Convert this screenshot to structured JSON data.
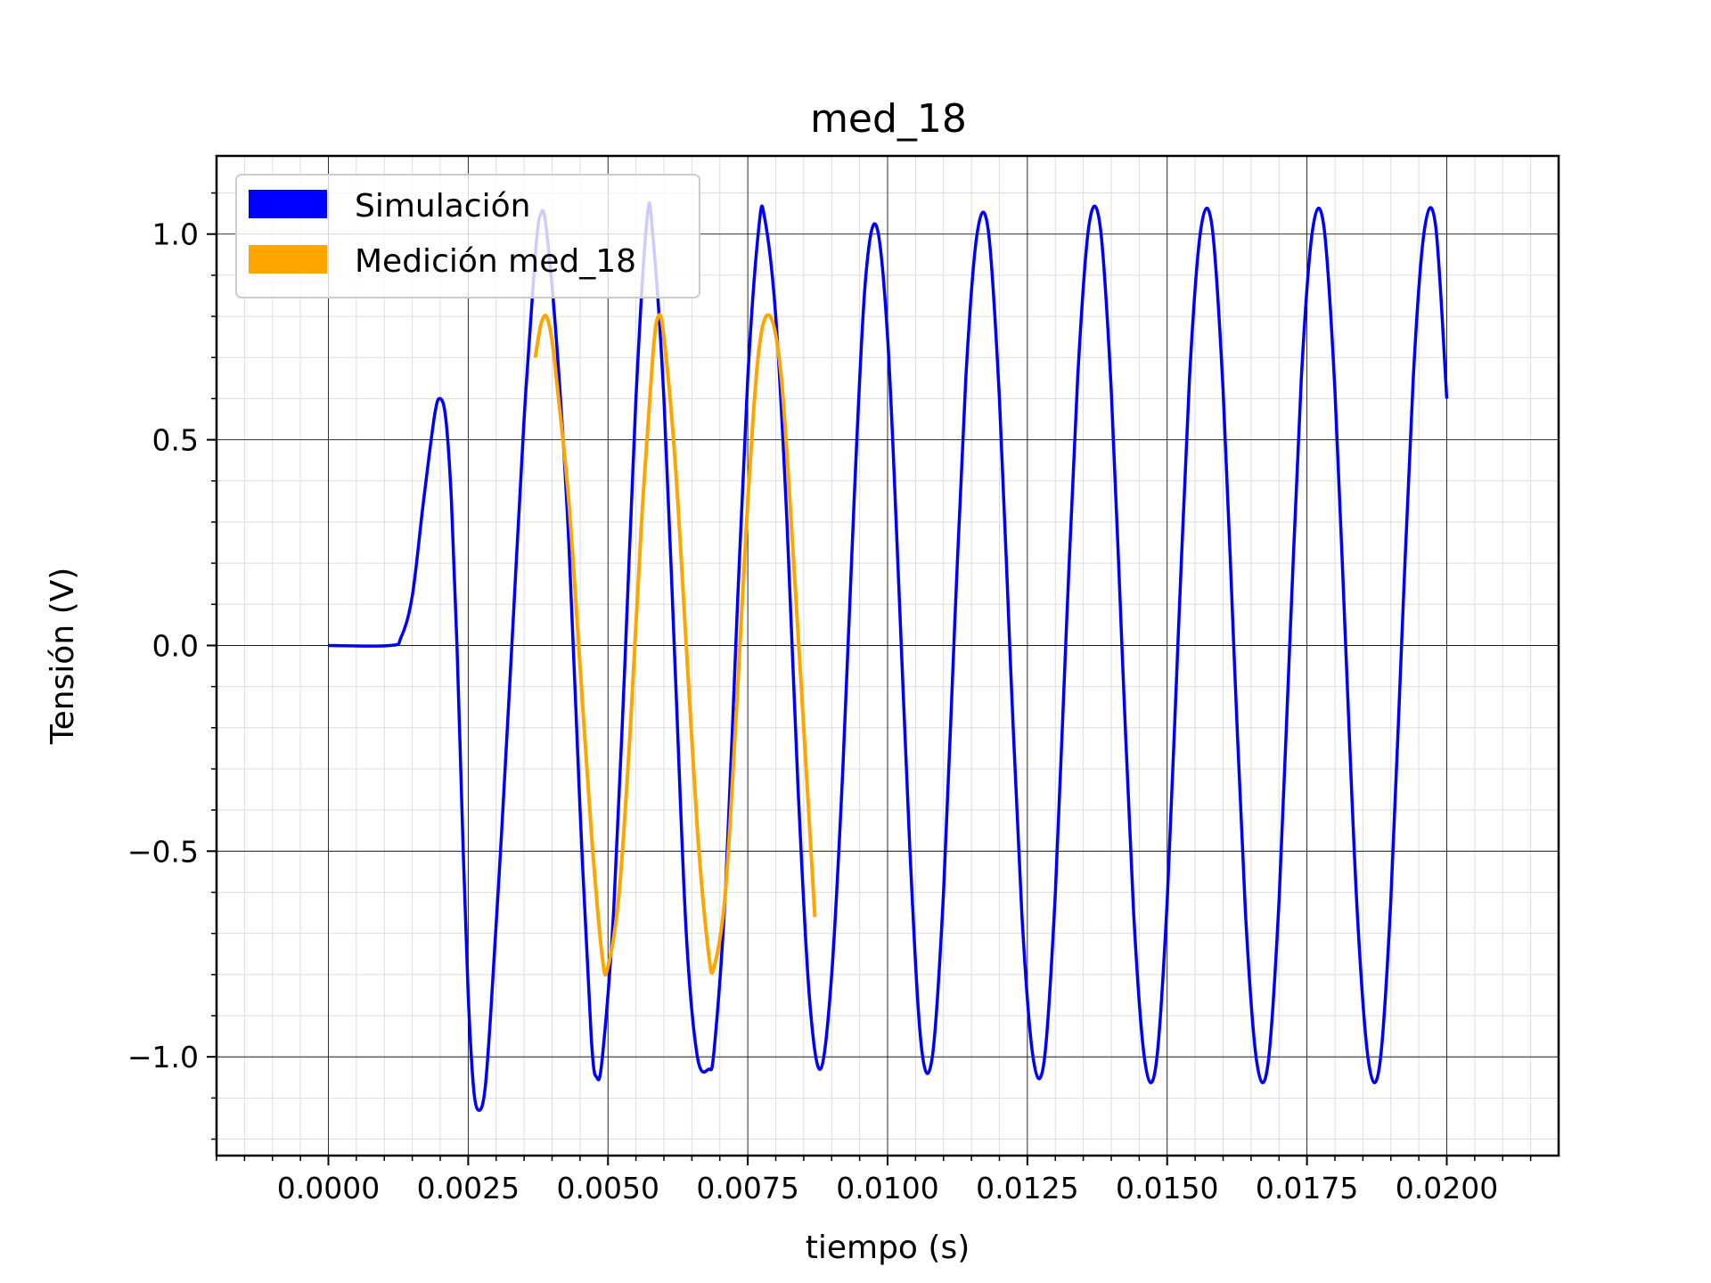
{
  "chart_data": {
    "type": "line",
    "title": "med_18",
    "xlabel": "tiempo (s)",
    "ylabel": "Tensión (V)",
    "xlim": [
      -0.002,
      0.022
    ],
    "ylim": [
      -1.24,
      1.19
    ],
    "x_ticks": [
      0.0,
      0.0025,
      0.005,
      0.0075,
      0.01,
      0.0125,
      0.015,
      0.0175,
      0.02
    ],
    "x_tick_labels": [
      "0.0000",
      "0.0025",
      "0.0050",
      "0.0075",
      "0.0100",
      "0.0125",
      "0.0150",
      "0.0175",
      "0.0200"
    ],
    "y_ticks": [
      -1.0,
      -0.5,
      0.0,
      0.5,
      1.0
    ],
    "y_tick_labels": [
      "−1.0",
      "−0.5",
      "0.0",
      "0.5",
      "1.0"
    ],
    "grid": true,
    "minor_grid": true,
    "legend_position": "top-left",
    "series": [
      {
        "name": "Simulación",
        "color": "#0000ff",
        "points": [
          [
            0.0,
            0.0
          ],
          [
            0.0011,
            0.0
          ],
          [
            0.0013,
            0.02
          ],
          [
            0.0015,
            0.12
          ],
          [
            0.0017,
            0.35
          ],
          [
            0.0019,
            0.56
          ],
          [
            0.002,
            0.6
          ],
          [
            0.0021,
            0.55
          ],
          [
            0.0022,
            0.35
          ],
          [
            0.0023,
            0.0
          ],
          [
            0.0024,
            -0.45
          ],
          [
            0.0025,
            -0.85
          ],
          [
            0.0026,
            -1.08
          ],
          [
            0.0027,
            -1.13
          ],
          [
            0.0028,
            -1.08
          ],
          [
            0.0029,
            -0.9
          ],
          [
            0.0031,
            -0.45
          ],
          [
            0.0033,
            0.05
          ],
          [
            0.0035,
            0.55
          ],
          [
            0.0037,
            0.95
          ],
          [
            0.0038,
            1.05
          ],
          [
            0.0039,
            1.01
          ],
          [
            0.0041,
            0.7
          ],
          [
            0.0043,
            0.25
          ],
          [
            0.0045,
            -0.4
          ],
          [
            0.0047,
            -0.95
          ],
          [
            0.0048,
            -1.05
          ],
          [
            0.0049,
            -1.0
          ],
          [
            0.0051,
            -0.65
          ],
          [
            0.0053,
            -0.05
          ],
          [
            0.0055,
            0.6
          ],
          [
            0.0057,
            1.04
          ],
          [
            0.0058,
            1.0
          ],
          [
            0.006,
            0.6
          ],
          [
            0.0062,
            -0.05
          ],
          [
            0.0064,
            -0.7
          ],
          [
            0.0066,
            -1.0
          ],
          [
            0.0068,
            -1.03
          ],
          [
            0.0069,
            -0.98
          ],
          [
            0.0071,
            -0.6
          ],
          [
            0.0073,
            0.05
          ],
          [
            0.0075,
            0.65
          ],
          [
            0.0077,
            1.02
          ],
          [
            0.0078,
            1.04
          ],
          [
            0.008,
            0.8
          ],
          [
            0.0082,
            0.3
          ],
          [
            0.0084,
            -0.35
          ],
          [
            0.0086,
            -0.85
          ],
          [
            0.0088,
            -1.03
          ],
          [
            0.009,
            -0.8
          ],
          [
            0.0092,
            -0.3
          ],
          [
            0.0094,
            0.35
          ],
          [
            0.0096,
            0.88
          ],
          [
            0.0098,
            1.02
          ],
          [
            0.01,
            0.75
          ],
          [
            0.0102,
            0.15
          ],
          [
            0.0104,
            -0.5
          ],
          [
            0.0106,
            -0.97
          ],
          [
            0.0108,
            -1.0
          ],
          [
            0.011,
            -0.6
          ],
          [
            0.0112,
            0.05
          ],
          [
            0.0114,
            0.65
          ],
          [
            0.0116,
            1.0
          ],
          [
            0.0118,
            1.01
          ],
          [
            0.012,
            0.6
          ],
          [
            0.0122,
            -0.05
          ],
          [
            0.0124,
            -0.65
          ],
          [
            0.0126,
            -1.0
          ],
          [
            0.0128,
            -1.01
          ],
          [
            0.013,
            -0.6
          ],
          [
            0.0132,
            0.05
          ],
          [
            0.0134,
            0.65
          ],
          [
            0.0136,
            1.02
          ],
          [
            0.0138,
            1.02
          ],
          [
            0.014,
            0.62
          ],
          [
            0.0142,
            -0.03
          ],
          [
            0.0144,
            -0.65
          ],
          [
            0.0146,
            -1.01
          ],
          [
            0.0148,
            -1.02
          ],
          [
            0.015,
            -0.62
          ],
          [
            0.0152,
            0.03
          ],
          [
            0.0154,
            0.65
          ],
          [
            0.0156,
            1.01
          ],
          [
            0.0158,
            1.02
          ],
          [
            0.016,
            0.62
          ],
          [
            0.0162,
            -0.03
          ],
          [
            0.0164,
            -0.65
          ],
          [
            0.0166,
            -1.01
          ],
          [
            0.0168,
            -1.02
          ],
          [
            0.017,
            -0.62
          ],
          [
            0.0172,
            0.03
          ],
          [
            0.0174,
            0.65
          ],
          [
            0.0176,
            1.01
          ],
          [
            0.0178,
            1.02
          ],
          [
            0.018,
            0.62
          ],
          [
            0.0182,
            -0.03
          ],
          [
            0.0184,
            -0.65
          ],
          [
            0.0186,
            -1.01
          ],
          [
            0.0188,
            -1.02
          ],
          [
            0.019,
            -0.62
          ],
          [
            0.0192,
            0.03
          ],
          [
            0.0194,
            0.65
          ],
          [
            0.0196,
            1.01
          ],
          [
            0.0198,
            1.02
          ],
          [
            0.02,
            0.6
          ]
        ]
      },
      {
        "name": "Medición med_18",
        "color": "#ffa500",
        "points": [
          [
            0.0037,
            0.7
          ],
          [
            0.0038,
            0.78
          ],
          [
            0.0039,
            0.8
          ],
          [
            0.004,
            0.74
          ],
          [
            0.0041,
            0.62
          ],
          [
            0.0043,
            0.35
          ],
          [
            0.0045,
            -0.05
          ],
          [
            0.0047,
            -0.45
          ],
          [
            0.0049,
            -0.76
          ],
          [
            0.005,
            -0.78
          ],
          [
            0.0052,
            -0.6
          ],
          [
            0.0054,
            -0.2
          ],
          [
            0.0056,
            0.3
          ],
          [
            0.0058,
            0.7
          ],
          [
            0.0059,
            0.8
          ],
          [
            0.006,
            0.75
          ],
          [
            0.0062,
            0.45
          ],
          [
            0.0064,
            0.0
          ],
          [
            0.0066,
            -0.45
          ],
          [
            0.0068,
            -0.75
          ],
          [
            0.0069,
            -0.78
          ],
          [
            0.0071,
            -0.6
          ],
          [
            0.0073,
            -0.15
          ],
          [
            0.0075,
            0.35
          ],
          [
            0.0077,
            0.72
          ],
          [
            0.0079,
            0.8
          ],
          [
            0.0081,
            0.65
          ],
          [
            0.0083,
            0.25
          ],
          [
            0.0085,
            -0.2
          ],
          [
            0.0087,
            -0.66
          ]
        ]
      }
    ]
  }
}
